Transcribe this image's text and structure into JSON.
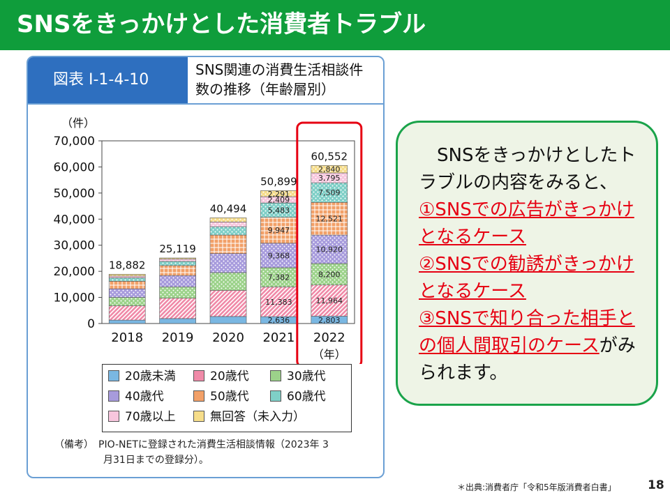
{
  "slide": {
    "title": "SNSをきっかけとした消費者トラブル",
    "page_number": "18",
    "source_note": "＊出典:消費者庁「令和5年版消費者白書」"
  },
  "figure": {
    "id_label": "図表 I-1-4-10",
    "caption_line1": "SNS関連の消費生活相談件",
    "caption_line2": "数の推移（年齢層別）",
    "note_line1": "（備考）　PIO-NETに登録された消費生活相談情報（2023年 3",
    "note_line2": "月31日までの登録分）。"
  },
  "info": {
    "intro": "　SNSをきっかけとしたトラブルの内容をみると、",
    "item1": "①SNSでの広告がきっかけとなるケース",
    "item2": "②SNSでの勧誘がきっかけとなるケース",
    "item3": "③SNSで知り合った相手との個人間取引のケース",
    "outro": "がみられます。"
  },
  "chart_data": {
    "type": "bar",
    "stacked": true,
    "ylabel": "（件）",
    "xlabel": "（年）",
    "ylim": [
      0,
      70000
    ],
    "yticks": [
      0,
      10000,
      20000,
      30000,
      40000,
      50000,
      60000,
      70000
    ],
    "ytick_labels": [
      "0",
      "10,000",
      "20,000",
      "30,000",
      "40,000",
      "50,000",
      "60,000",
      "70,000"
    ],
    "categories": [
      "2018",
      "2019",
      "2020",
      "2021",
      "2022"
    ],
    "totals": [
      18882,
      25119,
      40494,
      50899,
      60552
    ],
    "total_labels": [
      "18,882",
      "25,119",
      "40,494",
      "50,899",
      "60,552"
    ],
    "highlight_category": "2022",
    "grid": false,
    "legend_position": "bottom",
    "series": [
      {
        "name": "20歳未満",
        "color": "#7ab7e2",
        "pattern": "solid",
        "values": [
          1300,
          1900,
          2700,
          2636,
          2803
        ],
        "labels": [
          "",
          "",
          "",
          "2,636",
          "2,803"
        ]
      },
      {
        "name": "20歳代",
        "color": "#f08aa8",
        "pattern": "diag",
        "values": [
          5500,
          7800,
          10000,
          11383,
          11964
        ],
        "labels": [
          "",
          "",
          "",
          "11,383",
          "11,964"
        ]
      },
      {
        "name": "30歳代",
        "color": "#9cd28a",
        "pattern": "dots",
        "values": [
          3200,
          4300,
          6800,
          7382,
          8200
        ],
        "labels": [
          "",
          "",
          "",
          "7,382",
          "8,200"
        ]
      },
      {
        "name": "40歳代",
        "color": "#a79bdc",
        "pattern": "dots",
        "values": [
          3300,
          4400,
          7300,
          9368,
          10920
        ],
        "labels": [
          "",
          "",
          "",
          "9,368",
          "10,920"
        ]
      },
      {
        "name": "50歳代",
        "color": "#f2a068",
        "pattern": "grid",
        "values": [
          2900,
          3800,
          7100,
          9947,
          12521
        ],
        "labels": [
          "",
          "",
          "",
          "9,947",
          "12,521"
        ]
      },
      {
        "name": "60歳代",
        "color": "#7fcfc7",
        "pattern": "dots",
        "values": [
          1300,
          1600,
          3200,
          5483,
          7509
        ],
        "labels": [
          "",
          "",
          "",
          "5,483",
          "7,509"
        ]
      },
      {
        "name": "70歳以上",
        "color": "#f7c6dd",
        "pattern": "dots",
        "values": [
          700,
          900,
          1800,
          2409,
          3795
        ],
        "labels": [
          "",
          "",
          "",
          "2,409",
          "3,795"
        ]
      },
      {
        "name": "無回答（未入力）",
        "color": "#f6dd8a",
        "pattern": "dots",
        "values": [
          682,
          419,
          1594,
          2291,
          2840
        ],
        "labels": [
          "",
          "",
          "",
          "2,291",
          "2,840"
        ]
      }
    ]
  }
}
